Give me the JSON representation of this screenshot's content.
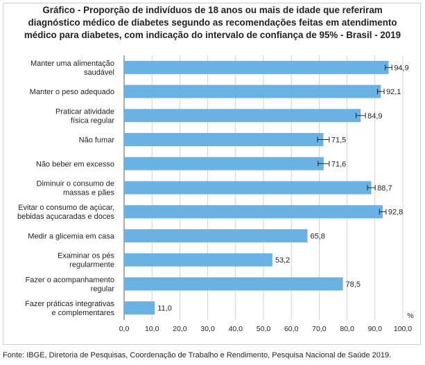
{
  "chart_data": {
    "type": "bar",
    "orientation": "horizontal",
    "title_lines": [
      "Gráfico - Proporção de indivíduos de 18 anos ou mais de idade que referiram",
      "diagnóstico médico de diabetes segundo as recomendações feitas em atendimento",
      "médico para diabetes, com indicação do intervalo de confiança de 95% - Brasil - 2019"
    ],
    "categories": [
      [
        "Manter uma alimentação",
        "saudável"
      ],
      [
        "Manter o peso adequado"
      ],
      [
        "Praticar atividade",
        "física regular"
      ],
      [
        "Não fumar"
      ],
      [
        "Não beber em excesso"
      ],
      [
        "Diminuir o consumo de",
        "massas e pães"
      ],
      [
        "Evitar o consumo de açúcar,",
        "bebidas açucaradas e doces"
      ],
      [
        "Medir a glicemia em casa"
      ],
      [
        "Examinar os pés",
        "regularmente"
      ],
      [
        "Fazer o acompanhamento",
        "regular"
      ],
      [
        "Fazer práticas integrativas",
        "e complementares"
      ]
    ],
    "values": [
      94.9,
      92.1,
      84.9,
      71.5,
      71.6,
      88.7,
      92.8,
      65.8,
      53.2,
      78.5,
      11.0
    ],
    "value_labels": [
      "94,9",
      "92,1",
      "84,9",
      "71,5",
      "71,6",
      "88,7",
      "92,8",
      "65,8",
      "53,2",
      "78,5",
      "11,0"
    ],
    "ci_low": [
      93.7,
      90.9,
      83.2,
      69.4,
      69.6,
      87.3,
      91.6,
      null,
      null,
      null,
      null
    ],
    "ci_high": [
      96.1,
      93.3,
      86.6,
      73.6,
      73.6,
      90.1,
      94.0,
      null,
      null,
      null,
      null
    ],
    "xlim": [
      0,
      100
    ],
    "xticks": [
      0,
      10,
      20,
      30,
      40,
      50,
      60,
      70,
      80,
      90,
      100
    ],
    "xtick_labels": [
      "0,0",
      "10,0",
      "20,0",
      "30,0",
      "40,0",
      "50,0",
      "60,0",
      "70,0",
      "80,0",
      "90,0",
      "100,0"
    ],
    "unit_label": "%",
    "grid": "vertical",
    "bar_color": "#6ab2e3",
    "source": "Fonte: IBGE, Diretoria de Pesquisas, Coordenação de Trabalho e Rendimento, Pesquisa Nacional de Saúde 2019."
  }
}
